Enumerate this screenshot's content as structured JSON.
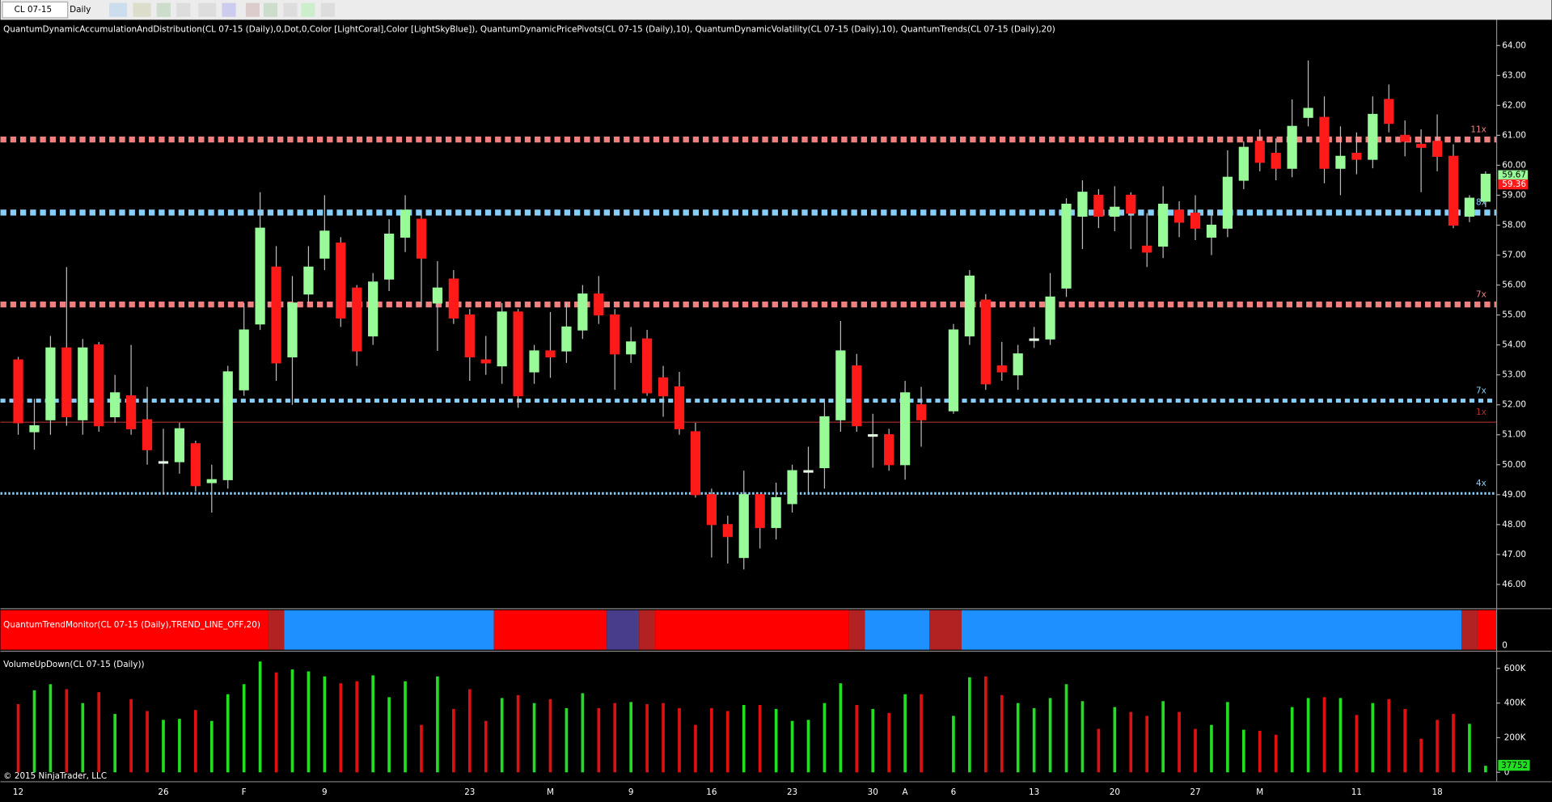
{
  "chart_data": {
    "type": "candlestick",
    "toolbar": {
      "symbol": "CL 07-15",
      "interval": "Daily"
    },
    "indicator_label": "QuantumDynamicAccumulationAndDistribution(CL 07-15 (Daily),0,Dot,0,Color [LightCoral],Color [LightSkyBlue]), QuantumDynamicPricePivots(CL 07-15 (Daily),10), QuantumDynamicVolatility(CL 07-15 (Daily),10), QuantumTrends(CL 07-15 (Daily),20)",
    "categories": [
      "12",
      null,
      null,
      null,
      null,
      null,
      null,
      null,
      null,
      "26",
      null,
      null,
      null,
      null,
      "F",
      null,
      null,
      null,
      null,
      "9",
      null,
      null,
      null,
      null,
      null,
      null,
      null,
      null,
      "23",
      null,
      null,
      null,
      null,
      "M",
      null,
      null,
      null,
      null,
      "9",
      null,
      null,
      null,
      null,
      "16",
      null,
      null,
      null,
      null,
      "23",
      null,
      null,
      null,
      null,
      "30",
      null,
      "A",
      null,
      null,
      "6",
      null,
      null,
      null,
      null,
      "13",
      null,
      null,
      null,
      null,
      "20",
      null,
      null,
      null,
      null,
      "27",
      null,
      null,
      null,
      "M",
      null,
      null,
      null,
      null,
      null,
      "11",
      null,
      null,
      null,
      null,
      "18",
      null,
      null,
      null
    ],
    "open": [
      53.5,
      51.1,
      51.5,
      53.9,
      51.5,
      54.0,
      51.6,
      52.3,
      51.5,
      50.1,
      50.1,
      50.7,
      49.4,
      49.5,
      52.5,
      54.7,
      56.6,
      53.6,
      55.7,
      56.9,
      57.4,
      55.9,
      54.3,
      56.2,
      57.6,
      58.2,
      55.4,
      56.2,
      55.0,
      53.5,
      53.3,
      55.1,
      53.1,
      53.8,
      53.8,
      54.5,
      55.7,
      55.0,
      53.7,
      54.2,
      52.9,
      52.6,
      51.1,
      49.0,
      48.0,
      46.9,
      49.0,
      47.9,
      48.7,
      49.8,
      49.9,
      51.5,
      53.3,
      51.0,
      51.0,
      50.0,
      52.0,
      null,
      51.8,
      54.3,
      55.5,
      53.3,
      53.0,
      54.2,
      54.2,
      55.9,
      58.3,
      59.0,
      58.3,
      59.0,
      57.3,
      57.3,
      58.5,
      58.4,
      57.6,
      57.9,
      59.5,
      60.8,
      60.4,
      59.9,
      61.6,
      61.6,
      59.9,
      60.4,
      60.2,
      62.2,
      61.0,
      60.7,
      60.8,
      60.3,
      58.3,
      58.8
    ],
    "high": [
      53.6,
      52.2,
      54.3,
      56.6,
      54.2,
      54.1,
      53.0,
      54.0,
      52.6,
      51.2,
      51.4,
      50.8,
      50.0,
      53.3,
      55.4,
      59.1,
      57.3,
      56.3,
      57.3,
      59.0,
      57.6,
      56.0,
      56.4,
      58.2,
      59.0,
      58.4,
      56.8,
      56.5,
      55.2,
      54.3,
      55.4,
      55.2,
      54.0,
      55.1,
      55.4,
      56.0,
      56.3,
      55.2,
      54.6,
      54.5,
      53.3,
      53.1,
      51.4,
      49.2,
      48.3,
      49.8,
      49.0,
      49.4,
      50.0,
      50.6,
      52.2,
      54.8,
      53.7,
      51.7,
      51.2,
      52.8,
      52.6,
      null,
      54.7,
      56.5,
      55.7,
      54.1,
      54.0,
      54.6,
      56.4,
      58.9,
      59.5,
      59.2,
      59.3,
      59.1,
      58.4,
      59.3,
      58.8,
      59.0,
      58.5,
      60.5,
      60.8,
      61.2,
      60.9,
      62.2,
      63.5,
      62.3,
      61.3,
      61.1,
      62.3,
      62.7,
      61.5,
      61.2,
      61.7,
      60.7,
      59.0,
      59.8
    ],
    "low": [
      51.0,
      50.5,
      51.0,
      51.3,
      51.0,
      51.1,
      51.4,
      51.0,
      50.0,
      49.0,
      49.7,
      49.1,
      48.4,
      49.2,
      52.3,
      54.5,
      52.8,
      52.0,
      55.4,
      56.5,
      54.6,
      53.3,
      54.0,
      55.8,
      57.1,
      55.3,
      53.8,
      54.7,
      52.8,
      53.0,
      52.7,
      51.9,
      52.7,
      52.9,
      53.4,
      54.2,
      54.7,
      52.5,
      53.4,
      52.3,
      51.6,
      51.0,
      48.9,
      46.9,
      46.7,
      46.5,
      47.2,
      47.5,
      48.4,
      49.0,
      49.2,
      51.1,
      51.1,
      49.9,
      49.8,
      49.5,
      50.6,
      null,
      51.7,
      54.0,
      52.5,
      52.8,
      52.5,
      53.9,
      54.0,
      55.6,
      57.2,
      57.9,
      57.8,
      57.2,
      56.6,
      56.9,
      57.6,
      57.5,
      57.0,
      57.6,
      59.2,
      59.8,
      59.5,
      59.6,
      61.3,
      59.4,
      59.0,
      59.7,
      59.9,
      61.1,
      60.3,
      59.1,
      59.8,
      57.9,
      58.1,
      58.6
    ],
    "close": [
      51.4,
      51.3,
      53.9,
      51.6,
      53.9,
      51.3,
      52.4,
      51.2,
      50.5,
      50.1,
      51.2,
      49.3,
      49.5,
      53.1,
      54.5,
      57.9,
      53.4,
      55.4,
      56.6,
      57.8,
      54.9,
      53.8,
      56.1,
      57.7,
      58.5,
      56.9,
      55.9,
      54.9,
      53.6,
      53.4,
      55.1,
      52.3,
      53.8,
      53.6,
      54.6,
      55.7,
      55.0,
      53.7,
      54.1,
      52.4,
      52.3,
      51.2,
      49.0,
      48.0,
      47.6,
      49.0,
      47.9,
      48.9,
      49.8,
      49.8,
      51.6,
      53.8,
      51.3,
      51.0,
      50.0,
      52.4,
      51.5,
      null,
      54.5,
      56.3,
      52.7,
      53.1,
      53.7,
      54.2,
      55.6,
      58.7,
      59.1,
      58.3,
      58.6,
      58.4,
      57.1,
      58.7,
      58.1,
      57.9,
      58.0,
      59.6,
      60.6,
      60.1,
      59.9,
      61.3,
      61.9,
      59.9,
      60.3,
      60.2,
      61.7,
      61.4,
      60.8,
      60.6,
      60.3,
      58.0,
      58.9,
      59.7
    ],
    "up_color": "#98fb98",
    "down_color": "#ff1a1a",
    "ylim": [
      45.24,
      64.86
    ],
    "yticks": [
      {
        "value": 46,
        "label": "46.00"
      },
      {
        "value": 47,
        "label": "47.00"
      },
      {
        "value": 48,
        "label": "48.00"
      },
      {
        "value": 49,
        "label": "49.00"
      },
      {
        "value": 50,
        "label": "50.00"
      },
      {
        "value": 51,
        "label": "51.00"
      },
      {
        "value": 52,
        "label": "52.00"
      },
      {
        "value": 53,
        "label": "53.00"
      },
      {
        "value": 54,
        "label": "54.00"
      },
      {
        "value": 55,
        "label": "55.00"
      },
      {
        "value": 56,
        "label": "56.00"
      },
      {
        "value": 57,
        "label": "57.00"
      },
      {
        "value": 58,
        "label": "58.00"
      },
      {
        "value": 59,
        "label": "59.00"
      },
      {
        "value": 60,
        "label": "60.00"
      },
      {
        "value": 61,
        "label": "61.00"
      },
      {
        "value": 62,
        "label": "62.00"
      },
      {
        "value": 63,
        "label": "63.00"
      },
      {
        "value": 64,
        "label": "64.00"
      }
    ],
    "last_prices": [
      {
        "value": 59.67,
        "color": "#98fb98"
      },
      {
        "value": 59.36,
        "color": "#ff1a1a"
      }
    ],
    "levels": [
      {
        "value": 60.86,
        "label": "11x",
        "color": "#f08080",
        "style": "thick"
      },
      {
        "value": 58.42,
        "label": "8x",
        "color": "#87cefa",
        "style": "thick"
      },
      {
        "value": 55.35,
        "label": "7x",
        "color": "#f08080",
        "style": "thick"
      },
      {
        "value": 52.14,
        "label": "7x",
        "color": "#87cefa",
        "style": "medium"
      },
      {
        "value": 51.42,
        "label": "1x",
        "color": "#b03030",
        "style": "thin"
      },
      {
        "value": 49.04,
        "label": "4x",
        "color": "#87cefa",
        "style": "dotted"
      }
    ],
    "trend_monitor": {
      "label": "QuantumTrendMonitor(CL 07-15 (Daily),TREND_LINE_OFF,20)",
      "yticks": [
        0
      ],
      "segments": [
        {
          "color": "#ff0000",
          "from": 0,
          "to": 15
        },
        {
          "color": "#b22222",
          "from": 16,
          "to": 16
        },
        {
          "color": "#1e90ff",
          "from": 17,
          "to": 29
        },
        {
          "color": "#ff0000",
          "from": 30,
          "to": 36
        },
        {
          "color": "#483d8b",
          "from": 37,
          "to": 38
        },
        {
          "color": "#b22222",
          "from": 39,
          "to": 39
        },
        {
          "color": "#ff0000",
          "from": 40,
          "to": 51
        },
        {
          "color": "#b22222",
          "from": 52,
          "to": 52
        },
        {
          "color": "#1e90ff",
          "from": 53,
          "to": 56
        },
        {
          "color": "#b22222",
          "from": 57,
          "to": 58
        },
        {
          "color": "#1e90ff",
          "from": 59,
          "to": 89
        },
        {
          "color": "#b22222",
          "from": 90,
          "to": 90
        },
        {
          "color": "#ff0000",
          "from": 91,
          "to": 91
        }
      ]
    },
    "volume": {
      "label": "VolumeUpDown(CL 07-15 (Daily))",
      "values": [
        394000,
        474000,
        509000,
        480000,
        400000,
        463000,
        337000,
        423000,
        354000,
        303000,
        309000,
        360000,
        297000,
        451000,
        509000,
        640000,
        577000,
        594000,
        583000,
        554000,
        514000,
        526000,
        560000,
        434000,
        526000,
        274000,
        554000,
        366000,
        480000,
        297000,
        429000,
        446000,
        400000,
        423000,
        371000,
        457000,
        371000,
        400000,
        406000,
        394000,
        400000,
        371000,
        274000,
        371000,
        354000,
        389000,
        389000,
        366000,
        297000,
        303000,
        400000,
        514000,
        389000,
        366000,
        343000,
        451000,
        451000,
        null,
        326000,
        549000,
        554000,
        446000,
        400000,
        371000,
        429000,
        509000,
        411000,
        251000,
        377000,
        349000,
        326000,
        411000,
        349000,
        251000,
        274000,
        406000,
        246000,
        240000,
        217000,
        377000,
        429000,
        434000,
        429000,
        331000,
        400000,
        423000,
        366000,
        194000,
        303000,
        337000,
        280000,
        37752
      ],
      "ylim": [
        0,
        691000
      ],
      "yticks": [
        0,
        {
          "value": 200000,
          "label": "200K"
        },
        {
          "value": 400000,
          "label": "400K"
        },
        {
          "value": 600000,
          "label": "600K"
        }
      ],
      "up_color": "#22dd22",
      "down_color": "#e01010"
    },
    "copyright": "© 2015 NinjaTrader, LLC"
  }
}
